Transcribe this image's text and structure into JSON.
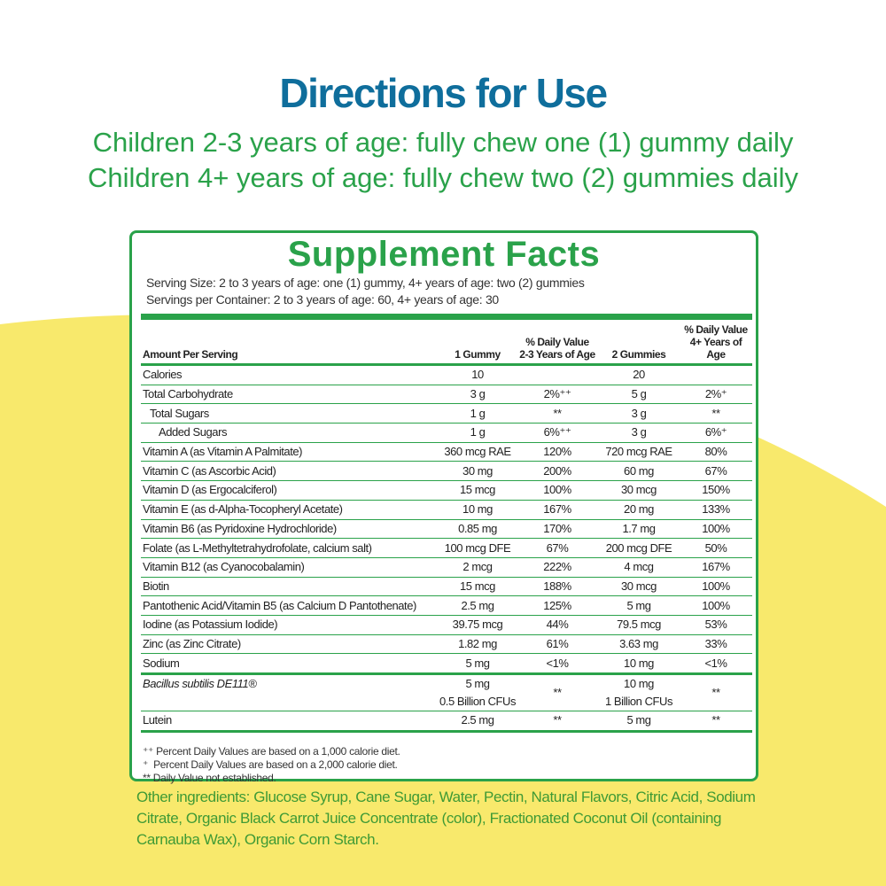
{
  "header": {
    "title": "Directions for Use",
    "lines": [
      "Children 2-3 years of age: fully chew one (1) gummy daily",
      "Children 4+ years of age: fully chew two (2) gummies daily"
    ]
  },
  "facts": {
    "title": "Supplement Facts",
    "serving_size": "Serving Size: 2 to 3 years of age: one (1) gummy, 4+ years of age: two (2) gummies",
    "servings_per_container": "Servings per Container: 2 to 3 years of age: 60, 4+ years of age: 30",
    "columns": [
      "Amount Per Serving",
      "1 Gummy",
      "% Daily Value\n2-3 Years of Age",
      "2 Gummies",
      "% Daily Value\n4+ Years of Age"
    ],
    "rows": [
      [
        "Calories",
        "10",
        null,
        "20",
        null
      ],
      [
        "Total Carbohydrate",
        "3 g",
        "2%⁺⁺",
        "5 g",
        "2%⁺"
      ],
      [
        "Total Sugars",
        "1 g",
        "**",
        "3 g",
        "**"
      ],
      [
        "Added Sugars",
        "1 g",
        "6%⁺⁺",
        "3 g",
        "6%⁺"
      ],
      [
        "Vitamin A (as Vitamin A Palmitate)",
        "360 mcg RAE",
        "120%",
        "720 mcg RAE",
        "80%"
      ],
      [
        "Vitamin C (as Ascorbic Acid)",
        "30 mg",
        "200%",
        "60 mg",
        "67%"
      ],
      [
        "Vitamin D (as Ergocalciferol)",
        "15 mcg",
        "100%",
        "30 mcg",
        "150%"
      ],
      [
        "Vitamin E (as d-Alpha-Tocopheryl Acetate)",
        "10 mg",
        "167%",
        "20 mg",
        "133%"
      ],
      [
        "Vitamin B6 (as Pyridoxine Hydrochloride)",
        "0.85 mg",
        "170%",
        "1.7 mg",
        "100%"
      ],
      [
        "Folate (as L-Methyltetrahydrofolate, calcium salt)",
        "100 mcg DFE",
        "67%",
        "200 mcg DFE",
        "50%"
      ],
      [
        "Vitamin B12 (as Cyanocobalamin)",
        "2 mcg",
        "222%",
        "4 mcg",
        "167%"
      ],
      [
        "Biotin",
        "15 mcg",
        "188%",
        "30 mcg",
        "100%"
      ],
      [
        "Pantothenic Acid/Vitamin B5 (as Calcium D Pantothenate)",
        "2.5 mg",
        "125%",
        "5 mg",
        "100%"
      ],
      [
        "Iodine (as Potassium Iodide)",
        "39.75 mcg",
        "44%",
        "79.5 mcg",
        "53%"
      ],
      [
        "Zinc (as Zinc Citrate)",
        "1.82 mg",
        "61%",
        "3.63 mg",
        "33%"
      ],
      [
        "Sodium",
        "5 mg",
        "<1%",
        "10 mg",
        "<1%"
      ],
      [
        "Bacillus subtilis DE111®",
        "5 mg\n0.5 Billion CFUs",
        "**",
        "10 mg\n1 Billion CFUs",
        "**"
      ],
      [
        "Lutein",
        "2.5 mg",
        "**",
        "5 mg",
        "**"
      ]
    ],
    "footnotes": [
      "⁺⁺ Percent Daily Values are based on a 1,000 calorie diet.",
      "⁺  Percent Daily Values are based on a 2,000 calorie diet.",
      "** Daily Value not established."
    ]
  },
  "other_ingredients": "Other ingredients: Glucose Syrup, Cane Sugar, Water, Pectin, Natural Flavors, Citric Acid, Sodium Citrate, Organic Black Carrot Juice Concentrate (color), Fractionated Coconut Oil (containing Carnauba Wax), Organic Corn Starch."
}
